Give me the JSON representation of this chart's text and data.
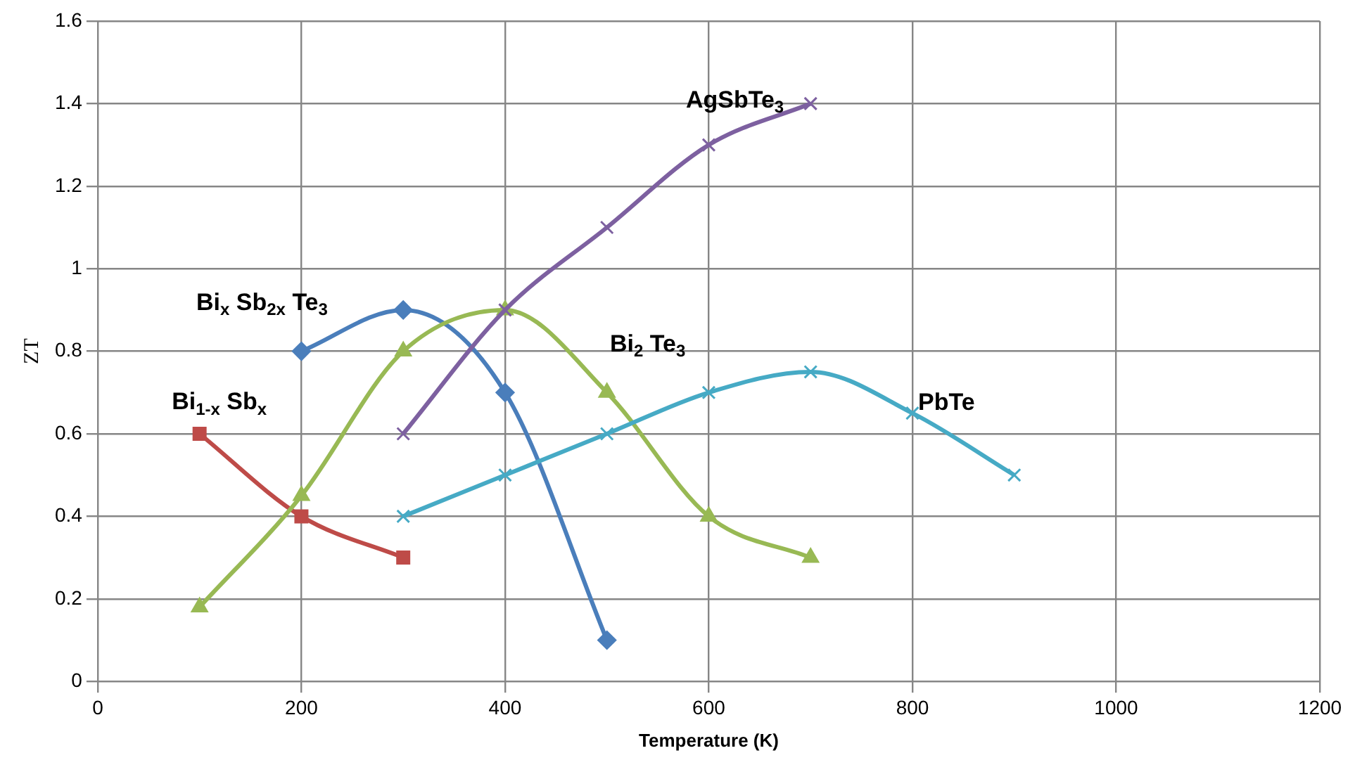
{
  "chart_data": {
    "type": "line",
    "xlabel": "Temperature (K)",
    "ylabel": "ZT",
    "xlim": [
      0,
      1200
    ],
    "xticks": [
      0,
      200,
      400,
      600,
      800,
      1000,
      1200
    ],
    "ylim": [
      0,
      1.6
    ],
    "yticks": [
      0,
      0.2,
      0.4,
      0.6,
      0.8,
      1,
      1.2,
      1.4,
      1.6
    ],
    "grid": true,
    "legend": false,
    "series": [
      {
        "name": "Bi$_{1-x}$ Sb$_{x}$",
        "color": "#be4b48",
        "marker": "square",
        "x": [
          100,
          200,
          300
        ],
        "values": [
          0.6,
          0.4,
          0.3
        ]
      },
      {
        "name": "Bi$_{x}$ Sb$_{2x}$ Te$_{3}$",
        "color": "#4a7ebb",
        "marker": "diamond",
        "x": [
          200,
          300,
          400,
          500
        ],
        "values": [
          0.8,
          0.9,
          0.7,
          0.1
        ]
      },
      {
        "name": "Bi$_{2}$ Te$_{3}$",
        "color": "#98b954",
        "marker": "triangle",
        "x": [
          100,
          200,
          300,
          400,
          500,
          600,
          700
        ],
        "values": [
          0.18,
          0.45,
          0.8,
          0.9,
          0.7,
          0.4,
          0.3
        ]
      },
      {
        "name": "AgSbTe$_{3}$",
        "color": "#7d60a0",
        "marker": "cross",
        "x": [
          300,
          400,
          500,
          600,
          700
        ],
        "values": [
          0.6,
          0.9,
          1.1,
          1.3,
          1.4
        ]
      },
      {
        "name": "PbTe",
        "color": "#46aac5",
        "marker": "cross",
        "x": [
          300,
          400,
          500,
          600,
          700,
          800,
          900
        ],
        "values": [
          0.4,
          0.5,
          0.6,
          0.7,
          0.75,
          0.65,
          0.5
        ]
      }
    ]
  }
}
